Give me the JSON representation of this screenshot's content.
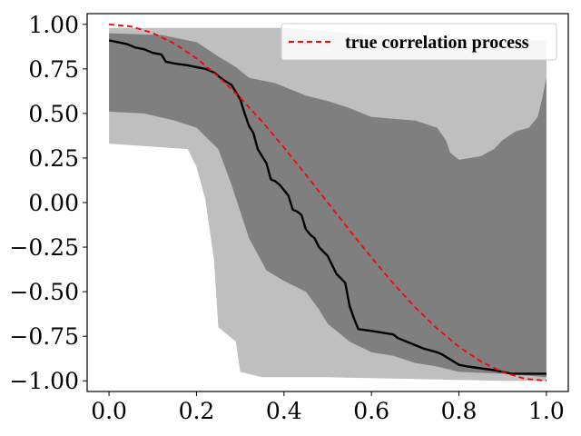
{
  "chart_data": {
    "type": "line",
    "xlim": [
      -0.05,
      1.05
    ],
    "ylim": [
      -1.06,
      1.06
    ],
    "x_ticks": [
      0.0,
      0.2,
      0.4,
      0.6,
      0.8,
      1.0
    ],
    "x_tick_labels": [
      "0.0",
      "0.2",
      "0.4",
      "0.6",
      "0.8",
      "1.0"
    ],
    "y_ticks": [
      1.0,
      0.75,
      0.5,
      0.25,
      0.0,
      -0.25,
      -0.5,
      -0.75,
      -1.0
    ],
    "y_tick_labels": [
      "1.00",
      "0.75",
      "0.50",
      "0.25",
      "0.00",
      "−0.25",
      "−0.50",
      "−0.75",
      "−1.00"
    ],
    "legend": {
      "placement": "top-right",
      "entries": [
        {
          "label": "true correlation process",
          "color": "#ff0000",
          "style": "dashed"
        }
      ]
    },
    "outer_band": {
      "color": "#bfbfbf",
      "upper": [
        [
          0.0,
          0.98
        ],
        [
          0.4,
          0.98
        ],
        [
          0.5,
          0.96
        ],
        [
          0.6,
          0.94
        ],
        [
          0.7,
          0.93
        ],
        [
          0.8,
          0.92
        ],
        [
          0.9,
          0.91
        ],
        [
          1.0,
          0.91
        ]
      ],
      "lower": [
        [
          0.0,
          0.33
        ],
        [
          0.18,
          0.3
        ],
        [
          0.2,
          0.2
        ],
        [
          0.22,
          0.02
        ],
        [
          0.24,
          -0.32
        ],
        [
          0.25,
          -0.7
        ],
        [
          0.26,
          -0.72
        ],
        [
          0.29,
          -0.78
        ],
        [
          0.3,
          -0.95
        ],
        [
          0.35,
          -0.98
        ],
        [
          0.5,
          -0.98
        ],
        [
          0.7,
          -0.99
        ],
        [
          0.9,
          -1.0
        ],
        [
          1.0,
          -1.0
        ]
      ]
    },
    "inner_band": {
      "color": "#7f7f7f",
      "upper": [
        [
          0.0,
          0.95
        ],
        [
          0.12,
          0.94
        ],
        [
          0.2,
          0.9
        ],
        [
          0.25,
          0.82
        ],
        [
          0.29,
          0.76
        ],
        [
          0.32,
          0.7
        ],
        [
          0.38,
          0.67
        ],
        [
          0.45,
          0.6
        ],
        [
          0.5,
          0.57
        ],
        [
          0.55,
          0.53
        ],
        [
          0.6,
          0.48
        ],
        [
          0.7,
          0.46
        ],
        [
          0.75,
          0.42
        ],
        [
          0.77,
          0.35
        ],
        [
          0.78,
          0.28
        ],
        [
          0.8,
          0.24
        ],
        [
          0.85,
          0.26
        ],
        [
          0.88,
          0.3
        ],
        [
          0.9,
          0.35
        ],
        [
          0.93,
          0.4
        ],
        [
          0.96,
          0.42
        ],
        [
          0.98,
          0.48
        ],
        [
          0.99,
          0.58
        ],
        [
          1.0,
          0.7
        ]
      ],
      "lower": [
        [
          0.0,
          0.51
        ],
        [
          0.08,
          0.5
        ],
        [
          0.15,
          0.46
        ],
        [
          0.2,
          0.42
        ],
        [
          0.25,
          0.3
        ],
        [
          0.28,
          0.1
        ],
        [
          0.32,
          -0.2
        ],
        [
          0.36,
          -0.38
        ],
        [
          0.4,
          -0.44
        ],
        [
          0.45,
          -0.5
        ],
        [
          0.48,
          -0.6
        ],
        [
          0.5,
          -0.68
        ],
        [
          0.55,
          -0.78
        ],
        [
          0.6,
          -0.84
        ],
        [
          0.65,
          -0.86
        ],
        [
          0.7,
          -0.9
        ],
        [
          0.75,
          -0.92
        ],
        [
          0.8,
          -0.95
        ],
        [
          0.9,
          -0.96
        ],
        [
          1.0,
          -0.98
        ]
      ]
    },
    "series": [
      {
        "color": "#000000",
        "style": "solid",
        "x": [
          0.0,
          0.02,
          0.04,
          0.06,
          0.08,
          0.1,
          0.12,
          0.13,
          0.15,
          0.18,
          0.2,
          0.22,
          0.24,
          0.26,
          0.28,
          0.3,
          0.31,
          0.32,
          0.33,
          0.34,
          0.35,
          0.36,
          0.37,
          0.38,
          0.39,
          0.4,
          0.41,
          0.42,
          0.43,
          0.44,
          0.45,
          0.46,
          0.47,
          0.48,
          0.5,
          0.51,
          0.52,
          0.54,
          0.55,
          0.56,
          0.57,
          0.6,
          0.65,
          0.66,
          0.7,
          0.72,
          0.75,
          0.76,
          0.78,
          0.8,
          0.82,
          0.85,
          0.88,
          0.9,
          0.92,
          0.95,
          1.0
        ],
        "y": [
          0.91,
          0.9,
          0.89,
          0.87,
          0.86,
          0.84,
          0.83,
          0.79,
          0.78,
          0.77,
          0.76,
          0.75,
          0.73,
          0.69,
          0.66,
          0.58,
          0.5,
          0.43,
          0.39,
          0.3,
          0.26,
          0.22,
          0.13,
          0.12,
          0.1,
          0.07,
          0.04,
          -0.04,
          -0.05,
          -0.07,
          -0.15,
          -0.18,
          -0.2,
          -0.25,
          -0.3,
          -0.35,
          -0.4,
          -0.45,
          -0.58,
          -0.65,
          -0.71,
          -0.72,
          -0.74,
          -0.76,
          -0.8,
          -0.82,
          -0.84,
          -0.85,
          -0.88,
          -0.91,
          -0.92,
          -0.93,
          -0.94,
          -0.95,
          -0.96,
          -0.96,
          -0.96
        ]
      },
      {
        "name": "true correlation process",
        "color": "#ff0000",
        "style": "dashed",
        "x": [
          0.0,
          0.05,
          0.1,
          0.15,
          0.2,
          0.25,
          0.3,
          0.35,
          0.4,
          0.45,
          0.5,
          0.55,
          0.6,
          0.65,
          0.7,
          0.75,
          0.8,
          0.85,
          0.9,
          0.95,
          1.0
        ],
        "y": [
          1.0,
          0.988,
          0.951,
          0.891,
          0.809,
          0.707,
          0.588,
          0.454,
          0.309,
          0.156,
          0.0,
          -0.156,
          -0.309,
          -0.454,
          -0.588,
          -0.707,
          -0.809,
          -0.891,
          -0.951,
          -0.988,
          -1.0
        ]
      }
    ]
  }
}
